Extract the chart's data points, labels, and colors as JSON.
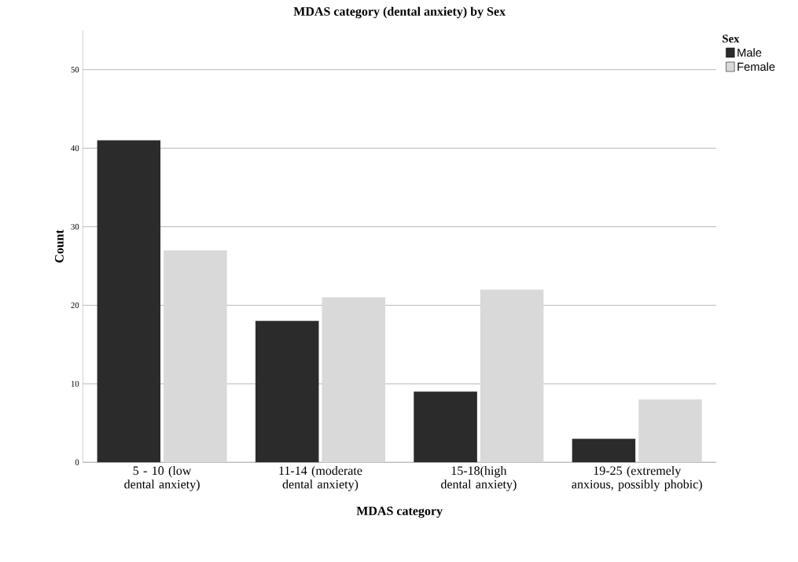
{
  "chart_data": {
    "type": "bar",
    "title": "MDAS category (dental anxiety) by Sex",
    "xlabel": "MDAS category",
    "ylabel": "Count",
    "legend_title": "Sex",
    "categories": [
      "5 - 10 (low dental anxiety)",
      "11-14 (moderate dental anxiety)",
      "15-18(high dental anxiety)",
      "19-25 (extremely anxious, possibly phobic)"
    ],
    "series": [
      {
        "name": "Male",
        "color": "#2b2b2b",
        "values": [
          41,
          18,
          9,
          3
        ]
      },
      {
        "name": "Female",
        "color": "#d9d9d9",
        "values": [
          27,
          21,
          22,
          8
        ]
      }
    ],
    "ylim": [
      0,
      55
    ],
    "yticks": [
      0,
      10,
      20,
      30,
      40,
      50
    ],
    "grid": "y",
    "legend": "top right"
  }
}
